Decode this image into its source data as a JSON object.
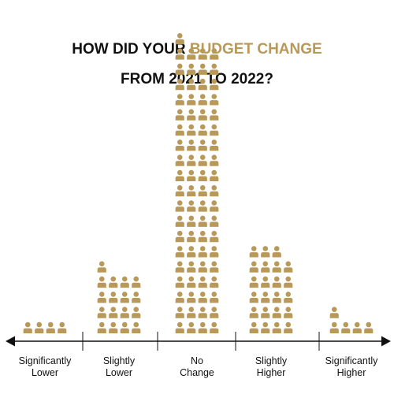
{
  "title": {
    "line1_prefix": "HOW DID YOUR ",
    "line1_highlight": "BUDGET CHANGE",
    "line2": "FROM 2021 TO 2022?"
  },
  "colors": {
    "accent": "#B8995A",
    "text": "#111111",
    "axis": "#111111",
    "background": "#FFFFFF"
  },
  "icon_name": "person-icon",
  "chart_data": {
    "type": "bar",
    "style": "pictogram",
    "categories": [
      [
        "Significantly",
        "Lower"
      ],
      [
        "Slightly",
        "Lower"
      ],
      [
        "No",
        "Change"
      ],
      [
        "Slightly",
        "Higher"
      ],
      [
        "Significantly",
        "Higher"
      ]
    ],
    "values": [
      4,
      17,
      77,
      23,
      5
    ],
    "unit": "respondent icons",
    "icons_per_row": 4,
    "grid": false,
    "legend": "none"
  }
}
